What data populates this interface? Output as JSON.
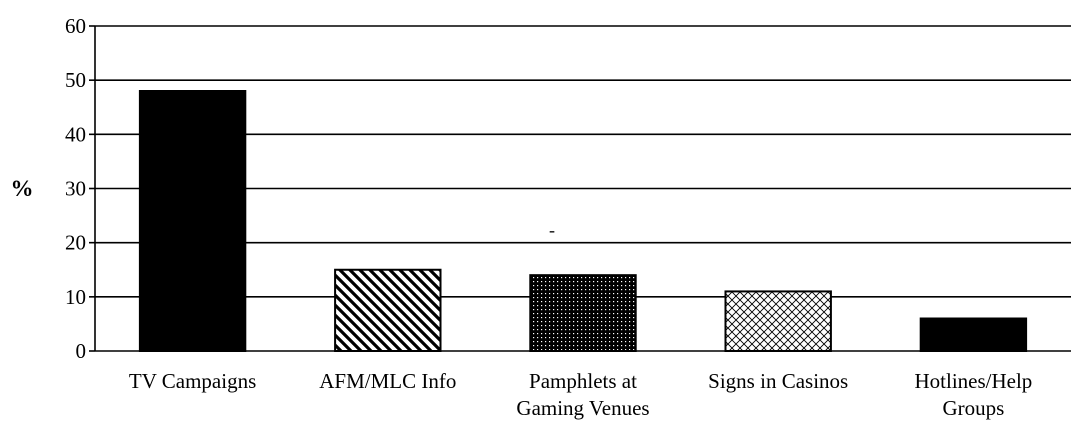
{
  "chart_data": {
    "type": "bar",
    "title": "",
    "xlabel": "",
    "ylabel": "%",
    "ylim": [
      0,
      60
    ],
    "yticks": [
      0,
      10,
      20,
      30,
      40,
      50,
      60
    ],
    "grid": true,
    "annotation": "-",
    "categories": [
      [
        "TV Campaigns"
      ],
      [
        "AFM/MLC Info"
      ],
      [
        "Pamphlets at",
        "Gaming Venues"
      ],
      [
        "Signs in Casinos"
      ],
      [
        "Hotlines/Help",
        "Groups"
      ]
    ],
    "values": [
      48,
      15,
      14,
      11,
      6
    ],
    "bar_fills": [
      "solid",
      "diagonal-stripes",
      "dots",
      "crosshatch",
      "solid"
    ],
    "colors": {
      "bar": "#000000",
      "background": "#ffffff",
      "grid": "#000000"
    }
  }
}
